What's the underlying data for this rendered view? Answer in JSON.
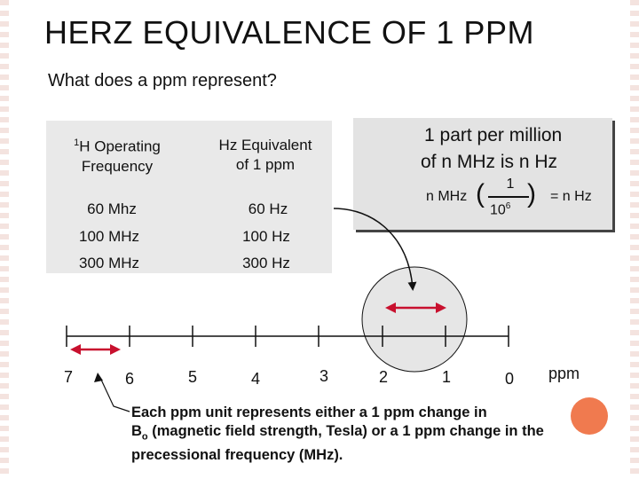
{
  "title": "HERZ EQUIVALENCE OF 1 PPM",
  "subtitle": "What does a ppm represent?",
  "table": {
    "col1_header_sup": "1",
    "col1_header_line1": "H Operating",
    "col1_header_line2": "Frequency",
    "col2_header_line1": "Hz Equivalent",
    "col2_header_line2": "of 1 ppm",
    "rows": [
      {
        "freq": "60 Mhz",
        "hz": "60 Hz"
      },
      {
        "freq": "100 MHz",
        "hz": "100 Hz"
      },
      {
        "freq": "300 MHz",
        "hz": "300 Hz"
      }
    ]
  },
  "box": {
    "line1": "1 part per million",
    "line2": "of n MHz is n Hz",
    "formula_left": "n MHz",
    "numerator": "1",
    "denominator": "10",
    "exponent": "6",
    "formula_right": "=  n Hz"
  },
  "axis": {
    "labels": [
      "7",
      "6",
      "5",
      "4",
      "3",
      "2",
      "1",
      "0"
    ],
    "unit": "ppm"
  },
  "note": {
    "part1": "Each ppm unit represents either a 1 ppm change in",
    "b": "B",
    "b_sub": "o",
    "part2": " (magnetic field strength, Tesla)  or  a 1 ppm change in the precessional frequency (MHz)."
  },
  "colors": {
    "arrow_red": "#c8102e",
    "highlight_circle": "#e6e6e6",
    "orange_dot": "#f07a4f"
  }
}
